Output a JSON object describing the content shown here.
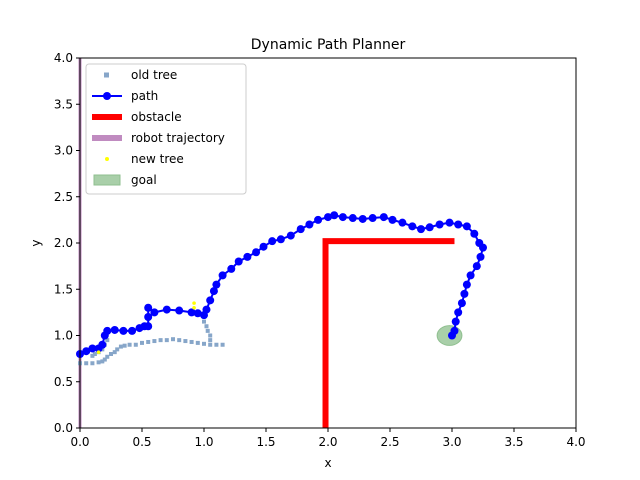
{
  "chart_data": {
    "type": "line",
    "title": "Dynamic Path Planner",
    "xlabel": "x",
    "ylabel": "y",
    "xlim": [
      0,
      4
    ],
    "ylim": [
      0,
      4
    ],
    "xticks": [
      "0.0",
      "0.5",
      "1.0",
      "1.5",
      "2.0",
      "2.5",
      "3.0",
      "3.5",
      "4.0"
    ],
    "yticks": [
      "0.0",
      "0.5",
      "1.0",
      "1.5",
      "2.0",
      "2.5",
      "3.0",
      "3.5",
      "4.0"
    ],
    "grid": false,
    "legend_position": "top-left",
    "legend": [
      {
        "name": "old tree",
        "kind": "square-marker",
        "color": "#87a6c9"
      },
      {
        "name": "path",
        "kind": "line-dot",
        "color": "#0000ff"
      },
      {
        "name": "obstacle",
        "kind": "thick-line",
        "color": "#ff0000"
      },
      {
        "name": "robot trajectory",
        "kind": "thick-line",
        "color": "#c08bc0"
      },
      {
        "name": "new tree",
        "kind": "small-marker",
        "color": "#ffff00"
      },
      {
        "name": "goal",
        "kind": "patch",
        "color": "#a9cfa9"
      }
    ],
    "series": [
      {
        "name": "old tree",
        "color": "#87a6c9",
        "points": [
          [
            0.0,
            0.7
          ],
          [
            0.05,
            0.7
          ],
          [
            0.1,
            0.7
          ],
          [
            0.15,
            0.71
          ],
          [
            0.18,
            0.72
          ],
          [
            0.2,
            0.74
          ],
          [
            0.22,
            0.77
          ],
          [
            0.25,
            0.8
          ],
          [
            0.28,
            0.82
          ],
          [
            0.3,
            0.85
          ],
          [
            0.33,
            0.88
          ],
          [
            0.36,
            0.89
          ],
          [
            0.4,
            0.9
          ],
          [
            0.45,
            0.9
          ],
          [
            0.5,
            0.92
          ],
          [
            0.55,
            0.93
          ],
          [
            0.6,
            0.94
          ],
          [
            0.65,
            0.95
          ],
          [
            0.7,
            0.95
          ],
          [
            0.75,
            0.96
          ],
          [
            0.8,
            0.95
          ],
          [
            0.85,
            0.94
          ],
          [
            0.9,
            0.93
          ],
          [
            0.95,
            0.92
          ],
          [
            1.0,
            0.91
          ],
          [
            1.05,
            0.9
          ],
          [
            1.1,
            0.9
          ],
          [
            1.15,
            0.9
          ],
          [
            1.05,
            1.0
          ],
          [
            1.03,
            1.05
          ],
          [
            1.02,
            1.1
          ],
          [
            1.0,
            1.15
          ],
          [
            1.05,
            0.95
          ],
          [
            0.15,
            0.82
          ],
          [
            0.12,
            0.8
          ],
          [
            0.1,
            0.78
          ],
          [
            0.18,
            0.85
          ],
          [
            0.2,
            0.9
          ],
          [
            0.22,
            0.95
          ]
        ]
      },
      {
        "name": "path",
        "color": "#0000ff",
        "points": [
          [
            0.0,
            0.8
          ],
          [
            0.05,
            0.83
          ],
          [
            0.1,
            0.86
          ],
          [
            0.15,
            0.86
          ],
          [
            0.18,
            0.9
          ],
          [
            0.2,
            1.0
          ],
          [
            0.22,
            1.05
          ],
          [
            0.28,
            1.06
          ],
          [
            0.35,
            1.05
          ],
          [
            0.42,
            1.05
          ],
          [
            0.48,
            1.08
          ],
          [
            0.52,
            1.1
          ],
          [
            0.55,
            1.1
          ],
          [
            0.55,
            1.2
          ],
          [
            0.55,
            1.3
          ],
          [
            0.6,
            1.25
          ],
          [
            0.7,
            1.28
          ],
          [
            0.8,
            1.27
          ],
          [
            0.9,
            1.25
          ],
          [
            0.95,
            1.24
          ],
          [
            1.0,
            1.22
          ],
          [
            1.02,
            1.28
          ],
          [
            1.05,
            1.38
          ],
          [
            1.08,
            1.48
          ],
          [
            1.1,
            1.55
          ],
          [
            1.15,
            1.65
          ],
          [
            1.22,
            1.72
          ],
          [
            1.28,
            1.8
          ],
          [
            1.35,
            1.85
          ],
          [
            1.42,
            1.9
          ],
          [
            1.48,
            1.96
          ],
          [
            1.55,
            2.02
          ],
          [
            1.62,
            2.04
          ],
          [
            1.7,
            2.08
          ],
          [
            1.78,
            2.15
          ],
          [
            1.85,
            2.2
          ],
          [
            1.92,
            2.25
          ],
          [
            2.0,
            2.28
          ],
          [
            2.05,
            2.3
          ],
          [
            2.12,
            2.28
          ],
          [
            2.2,
            2.27
          ],
          [
            2.28,
            2.26
          ],
          [
            2.36,
            2.27
          ],
          [
            2.45,
            2.28
          ],
          [
            2.52,
            2.25
          ],
          [
            2.6,
            2.22
          ],
          [
            2.68,
            2.18
          ],
          [
            2.75,
            2.15
          ],
          [
            2.82,
            2.17
          ],
          [
            2.9,
            2.2
          ],
          [
            2.98,
            2.22
          ],
          [
            3.05,
            2.2
          ],
          [
            3.12,
            2.18
          ],
          [
            3.18,
            2.1
          ],
          [
            3.22,
            2.0
          ],
          [
            3.25,
            1.95
          ],
          [
            3.23,
            1.85
          ],
          [
            3.2,
            1.75
          ],
          [
            3.15,
            1.65
          ],
          [
            3.12,
            1.55
          ],
          [
            3.1,
            1.45
          ],
          [
            3.08,
            1.35
          ],
          [
            3.05,
            1.25
          ],
          [
            3.03,
            1.15
          ],
          [
            3.02,
            1.05
          ],
          [
            3.0,
            1.0
          ]
        ]
      },
      {
        "name": "obstacle",
        "color": "#ff0000",
        "points": [
          [
            1.98,
            0.0
          ],
          [
            1.98,
            2.02
          ],
          [
            3.02,
            2.02
          ]
        ]
      },
      {
        "name": "robot trajectory",
        "color": "#c08bc0",
        "points": [
          [
            0.0,
            0.0
          ],
          [
            0.0,
            4.0
          ]
        ]
      },
      {
        "name": "new tree",
        "color": "#ffff00",
        "points": [
          [
            0.92,
            1.35
          ],
          [
            0.92,
            1.3
          ],
          [
            0.15,
            0.82
          ]
        ]
      },
      {
        "name": "goal",
        "color": "#a9cfa9",
        "center": [
          2.98,
          1.0
        ],
        "radius": 0.1
      }
    ]
  }
}
